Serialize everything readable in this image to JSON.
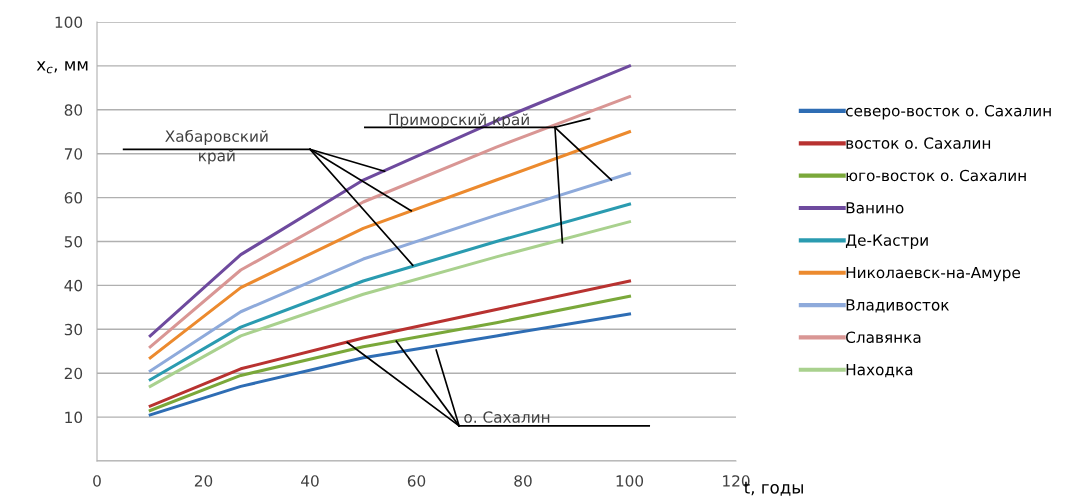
{
  "chart_data": {
    "type": "line",
    "xlabel": "t, годы",
    "ylabel": "x$_{c}$, мм",
    "xlim": [
      0,
      120
    ],
    "xticks": [
      0,
      20,
      40,
      60,
      80,
      100,
      120
    ],
    "ylim": [
      0,
      100
    ],
    "yticks": [
      {
        "value": 0,
        "label": null
      },
      10,
      20,
      30,
      40,
      50,
      60,
      70,
      80,
      {
        "value": 90,
        "label": null
      },
      100
    ],
    "grid": "y",
    "legend": "right",
    "annotations": [
      "Хабаровский\nкрай",
      {
        "text": "Приморский край",
        "x": 86,
        "y": 76
      },
      {
        "text": "о. Сахалин",
        "x": 47,
        "y": 27
      }
    ],
    "series": [
      {
        "name": "северо-восток о. Сахалин",
        "color": "#2e6db4",
        "x": [
          10,
          27,
          50,
          75,
          100
        ],
        "values": [
          10.5,
          17,
          23.5,
          28.5,
          33.5
        ]
      },
      {
        "name": "восток о. Сахалин",
        "color": "#b83230",
        "x": [
          10,
          27,
          50,
          75,
          100
        ],
        "values": [
          12.5,
          21,
          28,
          34.5,
          41
        ]
      },
      {
        "name": "юго-восток о. Сахалин",
        "color": "#7aa83a",
        "x": [
          10,
          27,
          50,
          75,
          100
        ],
        "values": [
          11.5,
          19.5,
          26,
          31.5,
          37.5
        ]
      },
      {
        "name": "Ванино",
        "color": "#6e4a9e",
        "x": [
          10,
          27,
          50,
          75,
          100
        ],
        "values": [
          28.5,
          47,
          64,
          77.5,
          90
        ]
      },
      {
        "name": "Де-Кастри",
        "color": "#2a9bb0",
        "x": [
          10,
          27,
          50,
          75,
          100
        ],
        "values": [
          18.5,
          30.5,
          41,
          50,
          58.5
        ]
      },
      {
        "name": "Николаевск-на-Амуре",
        "color": "#ec8a2e",
        "x": [
          10,
          27,
          50,
          75,
          100
        ],
        "values": [
          23.5,
          39.5,
          53,
          64,
          75
        ]
      },
      {
        "name": "Владивосток",
        "color": "#8eaadb",
        "x": [
          10,
          27,
          50,
          75,
          100
        ],
        "values": [
          20.5,
          34,
          46,
          56,
          65.5
        ]
      },
      {
        "name": "Славянка",
        "color": "#d99694",
        "x": [
          10,
          27,
          50,
          75,
          100
        ],
        "values": [
          26,
          43.5,
          59,
          71.5,
          83
        ]
      },
      {
        "name": "Находка",
        "color": "#a9d18e",
        "x": [
          10,
          27,
          50,
          75,
          100
        ],
        "values": [
          17,
          28.5,
          38,
          46.5,
          54.5
        ]
      }
    ]
  }
}
